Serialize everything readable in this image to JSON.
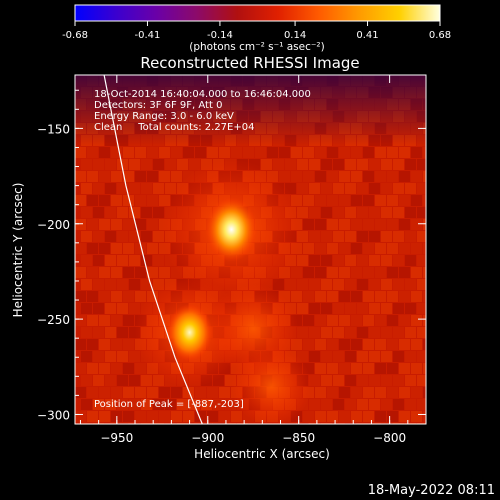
{
  "colorbar": {
    "tick_labels": [
      "-0.68",
      "-0.41",
      "-0.14",
      "0.14",
      "0.41",
      "0.68"
    ],
    "ticks": [
      -0.68,
      -0.41,
      -0.14,
      0.14,
      0.41,
      0.68
    ],
    "range": [
      -0.68,
      0.68
    ],
    "unit_label": "(photons cm⁻² s⁻¹ asec⁻²)",
    "colors": [
      "#0000ff",
      "#3a00d0",
      "#6a00a8",
      "#8c0a6a",
      "#b01010",
      "#e02000",
      "#ff5a00",
      "#ff9a00",
      "#ffd000",
      "#ffffe0"
    ]
  },
  "chart_data": {
    "type": "heatmap",
    "title": "Reconstructed RHESSI Image",
    "xlabel": "Heliocentric X (arcsec)",
    "ylabel": "Heliocentric Y (arcsec)",
    "xlim": [
      -973,
      -780
    ],
    "ylim": [
      -305,
      -122
    ],
    "x_ticks": [
      -950,
      -900,
      -850,
      -800
    ],
    "y_ticks": [
      -150,
      -200,
      -250,
      -300
    ],
    "x_tick_labels": [
      "−950",
      "−900",
      "−850",
      "−800"
    ],
    "y_tick_labels": [
      "−150",
      "−200",
      "−250",
      "−300"
    ],
    "info_lines": [
      "18-Oct-2014 16:40:04.000 to 16:46:04.000",
      "Detectors: 3F 6F 9F, Att 0",
      "Energy Range: 3.0 - 6.0 keV",
      "Clean     Total counts: 2.27E+04"
    ],
    "peak_label": "Position of Peak = [-887,-203]",
    "peak": [
      -887,
      -203
    ],
    "sources": [
      {
        "x": -887,
        "y": -203,
        "peak_value": 0.68
      },
      {
        "x": -910,
        "y": -257,
        "peak_value": 0.55
      }
    ],
    "limb_curve": [
      [
        -957,
        -122
      ],
      [
        -945,
        -180
      ],
      [
        -932,
        -230
      ],
      [
        -918,
        -270
      ],
      [
        -903,
        -305
      ]
    ]
  },
  "footer_timestamp": "18-May-2022 08:11"
}
